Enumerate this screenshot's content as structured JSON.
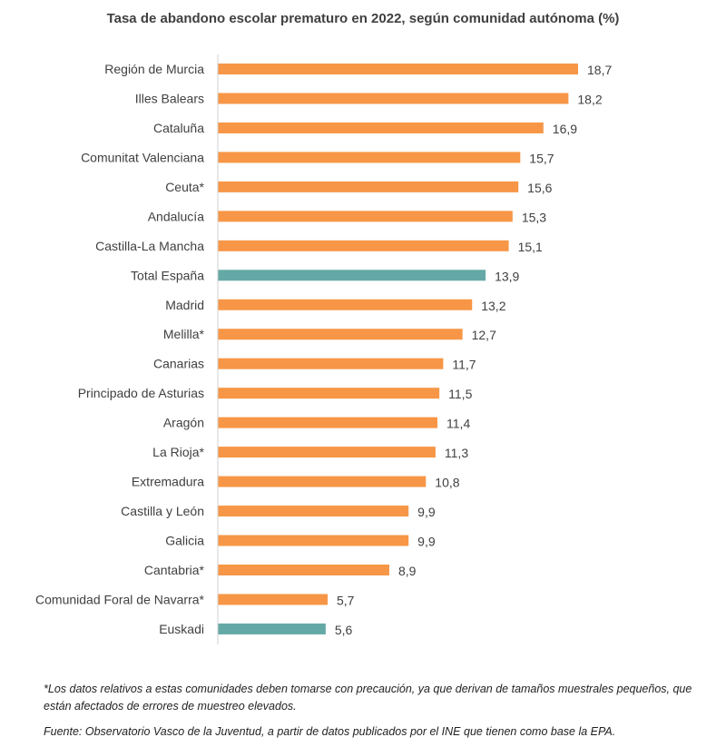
{
  "chart_data": {
    "type": "bar",
    "orientation": "horizontal",
    "title": "Tasa de abandono escolar prematuro en 2022, según comunidad autónoma (%)",
    "categories": [
      "Región de Murcia",
      "Illes Balears",
      "Cataluña",
      "Comunitat Valenciana",
      "Ceuta*",
      "Andalucía",
      "Castilla-La Mancha",
      "Total España",
      "Madrid",
      "Melilla*",
      "Canarias",
      "Principado de Asturias",
      "Aragón",
      "La Rioja*",
      "Extremadura",
      "Castilla y León",
      "Galicia",
      "Cantabria*",
      "Comunidad Foral de Navarra*",
      "Euskadi"
    ],
    "values": [
      18.7,
      18.2,
      16.9,
      15.7,
      15.6,
      15.3,
      15.1,
      13.9,
      13.2,
      12.7,
      11.7,
      11.5,
      11.4,
      11.3,
      10.8,
      9.9,
      9.9,
      8.9,
      5.7,
      5.6
    ],
    "data_labels": [
      "18,7",
      "18,2",
      "16,9",
      "15,7",
      "15,6",
      "15,3",
      "15,1",
      "13,9",
      "13,2",
      "12,7",
      "11,7",
      "11,5",
      "11,4",
      "11,3",
      "10,8",
      "9,9",
      "9,9",
      "8,9",
      "5,7",
      "5,6"
    ],
    "highlighted": [
      "Total España",
      "Euskadi"
    ],
    "colors": {
      "default": "#F79646",
      "highlight": "#64A9A6"
    },
    "xlim": [
      0,
      19
    ],
    "grid": false,
    "legend": "none"
  },
  "footnote": "*Los datos relativos a estas comunidades deben tomarse con precaución, ya que derivan de tamaños muestrales pequeños, que están afectados de errores de muestreo elevados.",
  "source": "Fuente: Observatorio Vasco de la Juventud, a partir de datos publicados por el INE que tienen como base la EPA."
}
